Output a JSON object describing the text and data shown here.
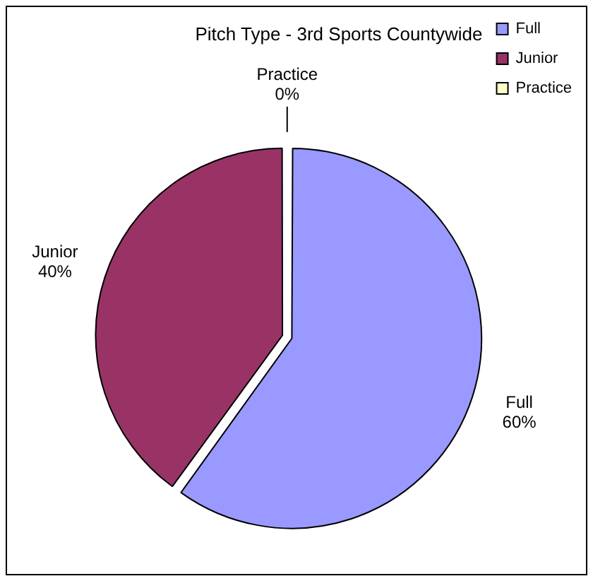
{
  "chart_data": {
    "type": "pie",
    "title": "Pitch Type - 3rd Sports Countywide",
    "categories": [
      "Full",
      "Junior",
      "Practice"
    ],
    "values": [
      60,
      40,
      0
    ],
    "colors": [
      "#9999ff",
      "#993366",
      "#ffffcc"
    ],
    "value_labels": [
      "60%",
      "40%",
      "0%"
    ],
    "legend": "top right"
  }
}
